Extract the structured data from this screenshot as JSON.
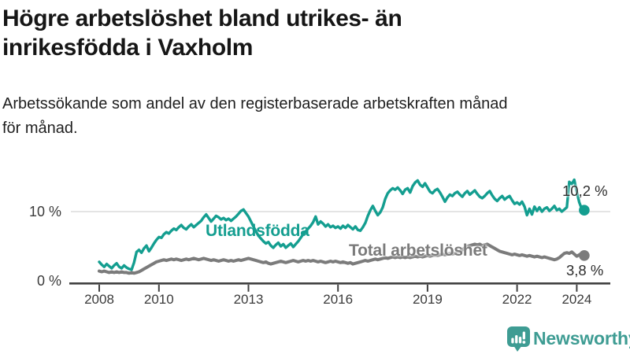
{
  "title": {
    "line1": "Högre arbetslöshet bland utrikes- än",
    "line2": "inrikesfödda i Vaxholm"
  },
  "subtitle": {
    "line1": "Arbetssökande som andel av den registerbaserade arbetskraften månad",
    "line2": "för månad."
  },
  "footer": {
    "brand": "Newsworthy",
    "brand_color": "#3e9c93",
    "logo_icon": "bar-chart-speech-bubble"
  },
  "chart_data": {
    "type": "line",
    "x_unit": "month",
    "x_start": "2008-01",
    "x_end": "2024-04",
    "x_tick_years": [
      "2008",
      "2010",
      "2013",
      "2016",
      "2019",
      "2022",
      "2024"
    ],
    "ylim": [
      0,
      15
    ],
    "y_ticks": [
      {
        "value": 0,
        "label": "0 %"
      },
      {
        "value": 10,
        "label": "10 %"
      }
    ],
    "grid": "horizontal-only",
    "series": [
      {
        "name": "Utlandsfödda",
        "color": "#149e90",
        "end_value": 10.2,
        "end_label": "10,2 %",
        "values": [
          2.9,
          2.5,
          2.2,
          2.6,
          2.3,
          2.0,
          2.4,
          2.7,
          2.2,
          2.0,
          2.4,
          2.1,
          1.9,
          1.8,
          2.8,
          4.3,
          4.6,
          4.2,
          4.8,
          5.2,
          4.4,
          4.9,
          5.5,
          6.0,
          6.4,
          6.3,
          6.8,
          7.1,
          6.9,
          7.3,
          7.6,
          7.4,
          7.8,
          8.1,
          7.7,
          7.5,
          7.9,
          8.2,
          7.8,
          8.1,
          8.4,
          8.7,
          9.2,
          9.6,
          9.1,
          8.6,
          9.0,
          9.4,
          9.2,
          8.9,
          9.1,
          8.8,
          9.0,
          8.7,
          9.0,
          9.3,
          9.7,
          10.1,
          10.3,
          9.8,
          9.3,
          8.6,
          7.9,
          7.2,
          6.6,
          6.2,
          5.8,
          5.5,
          5.7,
          5.2,
          4.9,
          5.3,
          5.6,
          5.1,
          5.4,
          4.9,
          5.2,
          5.5,
          5.0,
          5.4,
          5.8,
          6.3,
          6.8,
          7.2,
          7.6,
          8.0,
          8.5,
          9.3,
          8.2,
          8.6,
          8.3,
          7.9,
          8.2,
          7.8,
          8.0,
          7.7,
          7.9,
          7.6,
          8.0,
          7.7,
          8.1,
          7.8,
          7.5,
          7.9,
          7.4,
          7.3,
          7.8,
          8.4,
          9.4,
          10.2,
          10.8,
          10.1,
          9.5,
          9.9,
          10.6,
          11.8,
          12.6,
          13.0,
          13.3,
          13.1,
          13.4,
          13.0,
          12.5,
          13.1,
          13.3,
          12.7,
          13.6,
          14.1,
          14.4,
          13.8,
          13.5,
          14.0,
          13.4,
          12.8,
          12.6,
          13.0,
          13.2,
          12.7,
          12.1,
          11.4,
          12.0,
          12.4,
          12.2,
          12.6,
          12.8,
          12.4,
          12.1,
          12.6,
          12.9,
          12.4,
          12.7,
          13.0,
          12.5,
          12.1,
          11.9,
          12.2,
          12.6,
          12.9,
          12.3,
          11.8,
          11.5,
          11.9,
          12.2,
          11.7,
          12.0,
          12.2,
          11.6,
          11.1,
          11.3,
          11.0,
          11.4,
          10.7,
          9.5,
          10.4,
          9.6,
          10.7,
          10.1,
          10.6,
          10.0,
          10.4,
          10.6,
          10.1,
          10.4,
          10.8,
          10.2,
          10.4,
          10.0,
          10.3,
          10.6,
          14.2,
          13.9,
          14.5,
          12.8,
          11.3,
          10.4,
          10.2
        ]
      },
      {
        "name": "Total arbetslöshet",
        "color": "#7b7b7b",
        "end_value": 3.8,
        "end_label": "3,8 %",
        "values": [
          1.6,
          1.5,
          1.6,
          1.5,
          1.4,
          1.5,
          1.4,
          1.5,
          1.4,
          1.5,
          1.4,
          1.4,
          1.3,
          1.4,
          1.3,
          1.4,
          1.5,
          1.7,
          1.9,
          2.1,
          2.3,
          2.5,
          2.7,
          2.9,
          3.0,
          3.1,
          3.2,
          3.1,
          3.2,
          3.3,
          3.2,
          3.3,
          3.2,
          3.1,
          3.2,
          3.3,
          3.2,
          3.3,
          3.4,
          3.3,
          3.2,
          3.3,
          3.4,
          3.3,
          3.2,
          3.1,
          3.2,
          3.1,
          3.0,
          3.1,
          3.2,
          3.1,
          3.0,
          3.1,
          3.0,
          3.1,
          3.2,
          3.1,
          3.2,
          3.3,
          3.4,
          3.3,
          3.2,
          3.1,
          3.0,
          2.9,
          2.8,
          2.9,
          2.7,
          2.6,
          2.7,
          2.8,
          2.9,
          3.0,
          2.9,
          2.8,
          2.9,
          3.0,
          3.1,
          3.0,
          2.9,
          3.0,
          3.1,
          3.0,
          3.1,
          3.0,
          3.1,
          3.0,
          2.9,
          3.0,
          2.9,
          2.8,
          2.9,
          3.0,
          2.9,
          3.0,
          2.9,
          2.8,
          2.9,
          2.8,
          2.7,
          2.8,
          2.6,
          2.7,
          2.8,
          2.9,
          3.0,
          3.1,
          3.0,
          3.1,
          3.2,
          3.3,
          3.2,
          3.3,
          3.4,
          3.5,
          3.4,
          3.5,
          3.6,
          3.5,
          3.6,
          3.5,
          3.6,
          3.5,
          3.6,
          3.5,
          3.6,
          3.7,
          3.6,
          3.7,
          3.6,
          3.7,
          3.8,
          3.7,
          3.8,
          3.9,
          3.8,
          3.9,
          4.0,
          3.9,
          4.0,
          4.1,
          4.0,
          4.1,
          4.2,
          4.4,
          4.6,
          4.9,
          5.1,
          5.2,
          5.3,
          5.4,
          5.3,
          5.4,
          5.2,
          5.3,
          5.4,
          5.2,
          5.0,
          4.8,
          4.6,
          4.4,
          4.3,
          4.2,
          4.1,
          4.0,
          3.9,
          4.0,
          3.9,
          3.8,
          3.9,
          3.8,
          3.7,
          3.8,
          3.7,
          3.6,
          3.7,
          3.6,
          3.5,
          3.6,
          3.5,
          3.4,
          3.3,
          3.2,
          3.3,
          3.5,
          3.8,
          4.1,
          4.2,
          4.1,
          4.3,
          4.0,
          3.7,
          3.9,
          4.1,
          3.8
        ]
      }
    ]
  }
}
